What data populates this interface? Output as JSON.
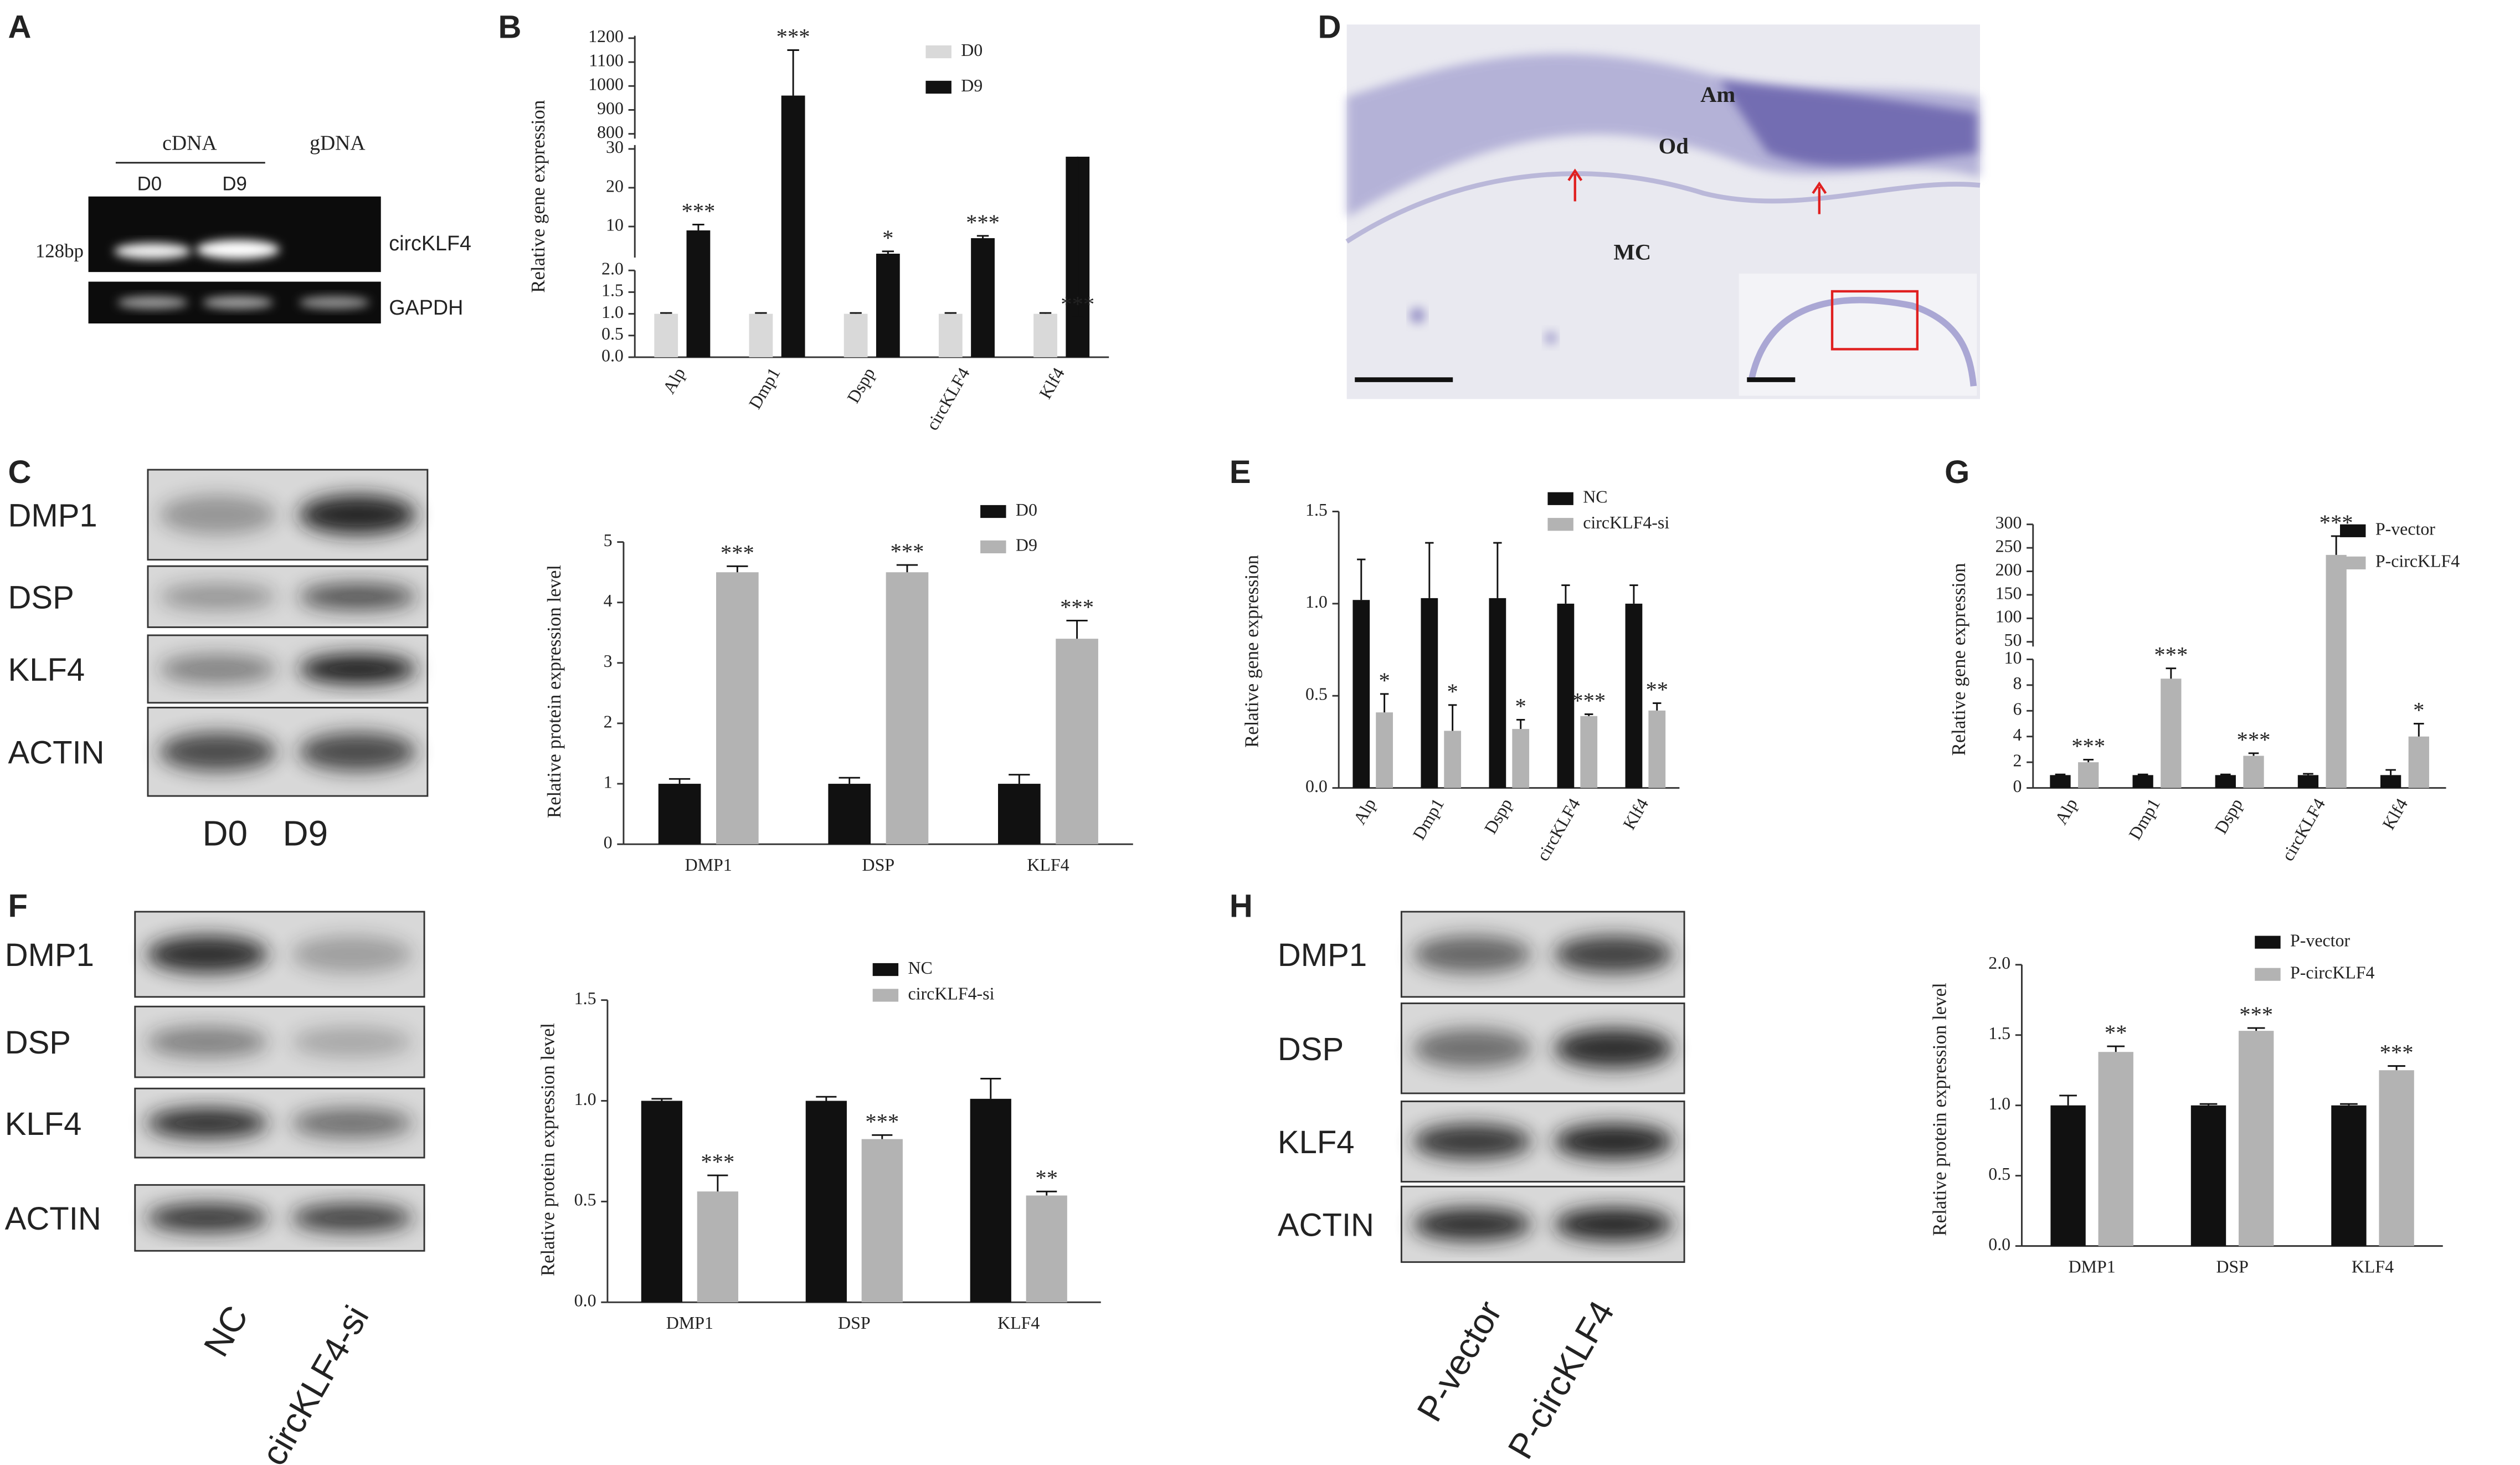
{
  "panel_labels": [
    "A",
    "B",
    "C",
    "D",
    "E",
    "F",
    "G",
    "H"
  ],
  "gel": {
    "groups": [
      "cDNA",
      "gDNA"
    ],
    "lanes": [
      "D0",
      "D9"
    ],
    "size_marker": "128bp",
    "bands": [
      "circKLF4",
      "GAPDH"
    ]
  },
  "histology": {
    "labels": [
      "Am",
      "Od",
      "MC"
    ]
  },
  "blots": [
    {
      "proteins": [
        "DMP1",
        "DSP",
        "KLF4",
        "ACTIN"
      ],
      "lanes": [
        "D0",
        "D9"
      ]
    },
    {
      "proteins": [
        "DMP1",
        "DSP",
        "KLF4",
        "ACTIN"
      ],
      "lanes": [
        "NC",
        "circKLF4-si"
      ]
    },
    {
      "proteins": [
        "DMP1",
        "DSP",
        "KLF4",
        "ACTIN"
      ],
      "lanes": [
        "P-vector",
        "P-circKLF4"
      ]
    }
  ],
  "chart_data": [
    {
      "type": "bar",
      "y_label": "Relative gene expression",
      "legend": "upper right",
      "categories": [
        "Alp",
        "Dmp1",
        "Dspp",
        "circKLF4",
        "Klf4"
      ],
      "series": [
        {
          "name": "D0",
          "color": "#d9d9d9",
          "values": [
            1,
            1,
            1,
            1,
            1
          ],
          "errors": [
            0.02,
            0.02,
            0.02,
            0.02,
            0.02
          ]
        },
        {
          "name": "D9",
          "color": "#111111",
          "values": [
            9,
            960,
            3,
            7,
            28
          ],
          "errors": [
            1.5,
            190,
            0.6,
            0.6,
            4
          ],
          "annotations": [
            "***",
            "***",
            "*",
            "***",
            "***"
          ]
        }
      ],
      "segments": [
        {
          "ylim": [
            0,
            2
          ],
          "yticks": [
            {
              "value": 0,
              "label": "0.0"
            },
            0.5,
            {
              "value": 1,
              "label": "1.0"
            },
            1.5,
            {
              "value": 2,
              "label": "2.0"
            }
          ]
        },
        {
          "ylim": [
            2,
            31
          ],
          "yticks": [
            10,
            20,
            30
          ]
        },
        {
          "ylim": [
            780,
            1210
          ],
          "yticks": [
            800,
            900,
            1000,
            1100,
            1200
          ]
        }
      ]
    },
    {
      "type": "bar",
      "y_label": "Relative protein expression level",
      "legend": "upper right",
      "categories": [
        "DMP1",
        "DSP",
        "KLF4"
      ],
      "series": [
        {
          "name": "D0",
          "color": "#111111",
          "values": [
            1,
            1,
            1
          ],
          "errors": [
            0.08,
            0.1,
            0.15
          ]
        },
        {
          "name": "D9",
          "color": "#b3b3b3",
          "values": [
            4.5,
            4.5,
            3.4
          ],
          "errors": [
            0.1,
            0.12,
            0.3
          ],
          "annotations": [
            "***",
            "***",
            "***"
          ]
        }
      ],
      "ylim": [
        0,
        5
      ],
      "yticks": [
        0,
        1,
        2,
        3,
        4,
        5
      ]
    },
    {
      "type": "bar",
      "y_label": "Relative gene expression",
      "legend": "upper right",
      "categories": [
        "Alp",
        "Dmp1",
        "Dspp",
        "circKLF4",
        "Klf4"
      ],
      "series": [
        {
          "name": "NC",
          "color": "#111111",
          "values": [
            1.02,
            1.03,
            1.03,
            1.0,
            1.0
          ],
          "errors": [
            0.22,
            0.3,
            0.3,
            0.1,
            0.1
          ]
        },
        {
          "name": "circKLF4-si",
          "color": "#b3b3b3",
          "values": [
            0.41,
            0.31,
            0.32,
            0.39,
            0.42
          ],
          "errors": [
            0.1,
            0.14,
            0.05,
            0.01,
            0.04
          ],
          "annotations": [
            "*",
            "*",
            "*",
            "***",
            "**"
          ]
        }
      ],
      "ylim": [
        0,
        1.5
      ],
      "yticks": [
        {
          "value": 0,
          "label": "0.0"
        },
        0.5,
        {
          "value": 1,
          "label": "1.0"
        },
        1.5
      ]
    },
    {
      "type": "bar",
      "y_label": "Relative protein expression level",
      "legend": "upper right",
      "categories": [
        "DMP1",
        "DSP",
        "KLF4"
      ],
      "series": [
        {
          "name": "NC",
          "color": "#111111",
          "values": [
            1.0,
            1.0,
            1.01
          ],
          "errors": [
            0.01,
            0.02,
            0.1
          ]
        },
        {
          "name": "circKLF4-si",
          "color": "#b3b3b3",
          "values": [
            0.55,
            0.81,
            0.53
          ],
          "errors": [
            0.08,
            0.02,
            0.02
          ],
          "annotations": [
            "***",
            "***",
            "**"
          ]
        }
      ],
      "ylim": [
        0,
        1.5
      ],
      "yticks": [
        {
          "value": 0,
          "label": "0.0"
        },
        0.5,
        {
          "value": 1,
          "label": "1.0"
        },
        1.5
      ]
    },
    {
      "type": "bar",
      "y_label": "Relative gene expression",
      "legend": "upper right",
      "categories": [
        "Alp",
        "Dmp1",
        "Dspp",
        "circKLF4",
        "Klf4"
      ],
      "series": [
        {
          "name": "P-vector",
          "color": "#111111",
          "values": [
            1,
            1,
            1,
            1,
            1
          ],
          "errors": [
            0.05,
            0.05,
            0.05,
            0.1,
            0.4
          ]
        },
        {
          "name": "P-circKLF4",
          "color": "#b3b3b3",
          "values": [
            2,
            8.5,
            2.5,
            235,
            4
          ],
          "errors": [
            0.2,
            0.8,
            0.2,
            40,
            1
          ],
          "annotations": [
            "***",
            "***",
            "***",
            "***",
            "*"
          ]
        }
      ],
      "segments": [
        {
          "ylim": [
            0,
            10
          ],
          "yticks": [
            0,
            2,
            4,
            6,
            8,
            10
          ]
        },
        {
          "ylim": [
            40,
            300
          ],
          "yticks": [
            50,
            100,
            150,
            200,
            250,
            300
          ]
        }
      ]
    },
    {
      "type": "bar",
      "y_label": "Relative protein expression level",
      "legend": "upper right",
      "categories": [
        "DMP1",
        "DSP",
        "KLF4"
      ],
      "series": [
        {
          "name": "P-vector",
          "color": "#111111",
          "values": [
            1.0,
            1.0,
            1.0
          ],
          "errors": [
            0.07,
            0.01,
            0.01
          ]
        },
        {
          "name": "P-circKLF4",
          "color": "#b3b3b3",
          "values": [
            1.38,
            1.53,
            1.25
          ],
          "errors": [
            0.04,
            0.02,
            0.03
          ],
          "annotations": [
            "**",
            "***",
            "***"
          ]
        }
      ],
      "ylim": [
        0,
        2
      ],
      "yticks": [
        {
          "value": 0,
          "label": "0.0"
        },
        0.5,
        {
          "value": 1,
          "label": "1.0"
        },
        1.5,
        {
          "value": 2,
          "label": "2.0"
        }
      ]
    }
  ]
}
